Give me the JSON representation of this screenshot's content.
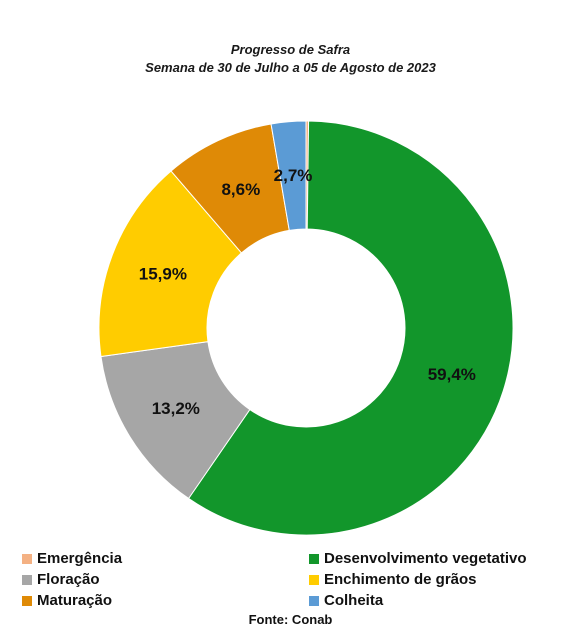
{
  "chart_data": {
    "type": "pie",
    "donut": true,
    "title": "Progresso de Safra",
    "subtitle": "Semana de 30 de Julho a 05 de Agosto de 2023",
    "slices": [
      {
        "name": "Emergência",
        "value": 0.2,
        "label": "",
        "color": "#f4b183"
      },
      {
        "name": "Desenvolvimento vegetativo",
        "value": 59.4,
        "label": "59,4%",
        "color": "#12962b"
      },
      {
        "name": "Floração",
        "value": 13.2,
        "label": "13,2%",
        "color": "#a6a6a6"
      },
      {
        "name": "Enchimento de grãos",
        "value": 15.9,
        "label": "15,9%",
        "color": "#ffcc00"
      },
      {
        "name": "Maturação",
        "value": 8.6,
        "label": "8,6%",
        "color": "#df8a06"
      },
      {
        "name": "Colheita",
        "value": 2.7,
        "label": "2,7%",
        "color": "#5b9bd5"
      }
    ],
    "legend_position": "bottom",
    "source": "Fonte: Conab"
  }
}
